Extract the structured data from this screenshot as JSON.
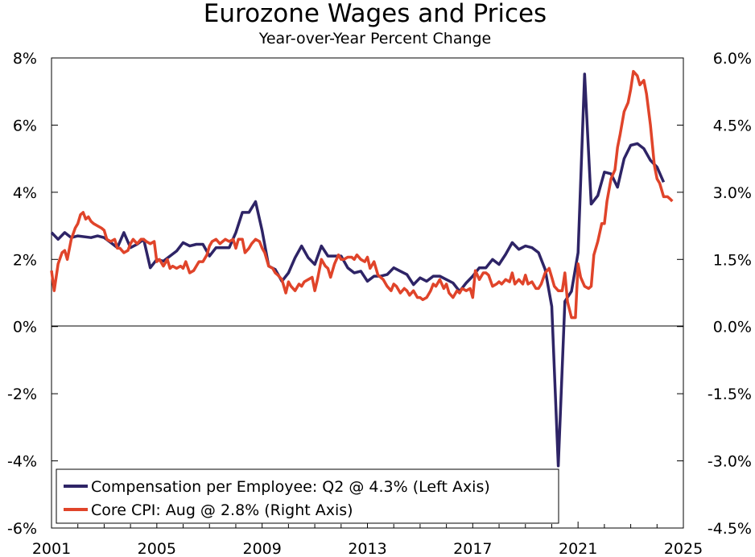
{
  "chart_data": {
    "type": "line",
    "title": "Eurozone Wages and Prices",
    "subtitle": "Year-over-Year Percent Change",
    "x_ticks": [
      "2001",
      "2005",
      "2009",
      "2013",
      "2017",
      "2021",
      "2025"
    ],
    "x_tick_values": [
      2001,
      2005,
      2009,
      2013,
      2017,
      2021,
      2025
    ],
    "xlim": [
      2001,
      2025
    ],
    "left_axis": {
      "ylim": [
        -6,
        8
      ],
      "ticks": [
        8,
        6,
        4,
        2,
        0,
        -2,
        -4,
        -6
      ],
      "tick_labels": [
        "8%",
        "6%",
        "4%",
        "2%",
        "0%",
        "-2%",
        "-4%",
        "-6%"
      ]
    },
    "right_axis": {
      "ylim": [
        -4.5,
        6.0
      ],
      "ticks": [
        6.0,
        4.5,
        3.0,
        1.5,
        0.0,
        -1.5,
        -3.0,
        -4.5
      ],
      "tick_labels": [
        "6.0%",
        "4.5%",
        "3.0%",
        "1.5%",
        "0.0%",
        "-1.5%",
        "-3.0%",
        "-4.5%"
      ]
    },
    "zero_line": true,
    "legend_position": "bottom-left",
    "series": [
      {
        "name": "Compensation per Employee: Q2 @ 4.3% (Left Axis)",
        "axis": "left",
        "color": "#2e2466",
        "points": [
          [
            2001.0,
            2.8
          ],
          [
            2001.25,
            2.6
          ],
          [
            2001.5,
            2.8
          ],
          [
            2001.75,
            2.65
          ],
          [
            2002.0,
            2.7
          ],
          [
            2002.5,
            2.65
          ],
          [
            2002.75,
            2.7
          ],
          [
            2003.0,
            2.65
          ],
          [
            2003.25,
            2.5
          ],
          [
            2003.5,
            2.35
          ],
          [
            2003.75,
            2.8
          ],
          [
            2004.0,
            2.35
          ],
          [
            2004.25,
            2.45
          ],
          [
            2004.5,
            2.6
          ],
          [
            2004.75,
            1.75
          ],
          [
            2005.0,
            2.0
          ],
          [
            2005.25,
            1.95
          ],
          [
            2005.5,
            2.1
          ],
          [
            2005.75,
            2.25
          ],
          [
            2006.0,
            2.5
          ],
          [
            2006.25,
            2.4
          ],
          [
            2006.5,
            2.45
          ],
          [
            2006.75,
            2.45
          ],
          [
            2007.0,
            2.1
          ],
          [
            2007.25,
            2.35
          ],
          [
            2007.5,
            2.35
          ],
          [
            2007.75,
            2.35
          ],
          [
            2008.0,
            2.8
          ],
          [
            2008.25,
            3.4
          ],
          [
            2008.5,
            3.4
          ],
          [
            2008.75,
            3.72
          ],
          [
            2009.0,
            2.85
          ],
          [
            2009.25,
            1.8
          ],
          [
            2009.5,
            1.7
          ],
          [
            2009.75,
            1.35
          ],
          [
            2010.0,
            1.6
          ],
          [
            2010.25,
            2.05
          ],
          [
            2010.5,
            2.4
          ],
          [
            2010.75,
            2.05
          ],
          [
            2011.0,
            1.85
          ],
          [
            2011.25,
            2.4
          ],
          [
            2011.5,
            2.1
          ],
          [
            2011.75,
            2.1
          ],
          [
            2012.0,
            2.1
          ],
          [
            2012.25,
            1.75
          ],
          [
            2012.5,
            1.6
          ],
          [
            2012.75,
            1.65
          ],
          [
            2013.0,
            1.35
          ],
          [
            2013.25,
            1.5
          ],
          [
            2013.5,
            1.5
          ],
          [
            2013.75,
            1.55
          ],
          [
            2014.0,
            1.75
          ],
          [
            2014.25,
            1.65
          ],
          [
            2014.5,
            1.55
          ],
          [
            2014.75,
            1.25
          ],
          [
            2015.0,
            1.45
          ],
          [
            2015.25,
            1.35
          ],
          [
            2015.5,
            1.5
          ],
          [
            2015.75,
            1.5
          ],
          [
            2016.0,
            1.4
          ],
          [
            2016.25,
            1.3
          ],
          [
            2016.5,
            1.05
          ],
          [
            2016.75,
            1.3
          ],
          [
            2017.0,
            1.5
          ],
          [
            2017.25,
            1.75
          ],
          [
            2017.5,
            1.75
          ],
          [
            2017.75,
            2.0
          ],
          [
            2018.0,
            1.85
          ],
          [
            2018.25,
            2.15
          ],
          [
            2018.5,
            2.5
          ],
          [
            2018.75,
            2.3
          ],
          [
            2019.0,
            2.4
          ],
          [
            2019.25,
            2.35
          ],
          [
            2019.5,
            2.2
          ],
          [
            2019.75,
            1.7
          ],
          [
            2020.0,
            0.6
          ],
          [
            2020.25,
            -4.15
          ],
          [
            2020.5,
            0.75
          ],
          [
            2020.75,
            1.05
          ],
          [
            2021.0,
            2.2
          ],
          [
            2021.25,
            7.52
          ],
          [
            2021.5,
            3.65
          ],
          [
            2021.75,
            3.9
          ],
          [
            2022.0,
            4.6
          ],
          [
            2022.25,
            4.55
          ],
          [
            2022.5,
            4.15
          ],
          [
            2022.75,
            5.0
          ],
          [
            2023.0,
            5.4
          ],
          [
            2023.25,
            5.45
          ],
          [
            2023.5,
            5.3
          ],
          [
            2023.75,
            4.95
          ],
          [
            2024.0,
            4.75
          ],
          [
            2024.25,
            4.3
          ]
        ]
      },
      {
        "name": "Core CPI: Aug @ 2.8% (Right Axis)",
        "axis": "right",
        "color": "#e0442a",
        "points": [
          [
            2001.0,
            1.25
          ],
          [
            2001.1,
            0.8
          ],
          [
            2001.25,
            1.4
          ],
          [
            2001.4,
            1.65
          ],
          [
            2001.5,
            1.7
          ],
          [
            2001.6,
            1.5
          ],
          [
            2001.75,
            1.95
          ],
          [
            2001.9,
            2.2
          ],
          [
            2002.0,
            2.3
          ],
          [
            2002.1,
            2.5
          ],
          [
            2002.2,
            2.55
          ],
          [
            2002.3,
            2.4
          ],
          [
            2002.4,
            2.45
          ],
          [
            2002.5,
            2.35
          ],
          [
            2002.6,
            2.3
          ],
          [
            2002.75,
            2.25
          ],
          [
            2002.9,
            2.2
          ],
          [
            2003.0,
            2.15
          ],
          [
            2003.1,
            1.95
          ],
          [
            2003.25,
            1.9
          ],
          [
            2003.4,
            1.95
          ],
          [
            2003.5,
            1.75
          ],
          [
            2003.6,
            1.75
          ],
          [
            2003.75,
            1.65
          ],
          [
            2003.9,
            1.7
          ],
          [
            2004.0,
            1.85
          ],
          [
            2004.1,
            1.95
          ],
          [
            2004.25,
            1.85
          ],
          [
            2004.4,
            1.95
          ],
          [
            2004.5,
            1.95
          ],
          [
            2004.6,
            1.9
          ],
          [
            2004.75,
            1.85
          ],
          [
            2004.9,
            1.9
          ],
          [
            2005.0,
            1.45
          ],
          [
            2005.1,
            1.5
          ],
          [
            2005.25,
            1.35
          ],
          [
            2005.4,
            1.5
          ],
          [
            2005.5,
            1.3
          ],
          [
            2005.6,
            1.35
          ],
          [
            2005.75,
            1.3
          ],
          [
            2005.9,
            1.35
          ],
          [
            2006.0,
            1.3
          ],
          [
            2006.1,
            1.45
          ],
          [
            2006.25,
            1.2
          ],
          [
            2006.4,
            1.25
          ],
          [
            2006.5,
            1.35
          ],
          [
            2006.6,
            1.45
          ],
          [
            2006.75,
            1.45
          ],
          [
            2006.9,
            1.6
          ],
          [
            2007.0,
            1.8
          ],
          [
            2007.1,
            1.9
          ],
          [
            2007.25,
            1.95
          ],
          [
            2007.4,
            1.85
          ],
          [
            2007.5,
            1.9
          ],
          [
            2007.6,
            1.95
          ],
          [
            2007.75,
            1.9
          ],
          [
            2007.9,
            1.95
          ],
          [
            2008.0,
            1.75
          ],
          [
            2008.1,
            1.95
          ],
          [
            2008.25,
            1.95
          ],
          [
            2008.35,
            1.65
          ],
          [
            2008.5,
            1.75
          ],
          [
            2008.6,
            1.85
          ],
          [
            2008.75,
            1.95
          ],
          [
            2008.9,
            1.9
          ],
          [
            2009.0,
            1.75
          ],
          [
            2009.1,
            1.65
          ],
          [
            2009.25,
            1.35
          ],
          [
            2009.4,
            1.3
          ],
          [
            2009.5,
            1.2
          ],
          [
            2009.6,
            1.15
          ],
          [
            2009.75,
            1.05
          ],
          [
            2009.9,
            0.75
          ],
          [
            2010.0,
            1.0
          ],
          [
            2010.1,
            0.9
          ],
          [
            2010.25,
            0.8
          ],
          [
            2010.4,
            0.95
          ],
          [
            2010.5,
            0.9
          ],
          [
            2010.6,
            1.0
          ],
          [
            2010.75,
            1.05
          ],
          [
            2010.9,
            1.1
          ],
          [
            2011.0,
            0.8
          ],
          [
            2011.1,
            1.05
          ],
          [
            2011.25,
            1.5
          ],
          [
            2011.4,
            1.35
          ],
          [
            2011.5,
            1.3
          ],
          [
            2011.6,
            1.1
          ],
          [
            2011.75,
            1.4
          ],
          [
            2011.9,
            1.6
          ],
          [
            2012.0,
            1.5
          ],
          [
            2012.1,
            1.5
          ],
          [
            2012.25,
            1.55
          ],
          [
            2012.4,
            1.55
          ],
          [
            2012.5,
            1.5
          ],
          [
            2012.6,
            1.6
          ],
          [
            2012.75,
            1.5
          ],
          [
            2012.9,
            1.45
          ],
          [
            2013.0,
            1.55
          ],
          [
            2013.1,
            1.3
          ],
          [
            2013.25,
            1.45
          ],
          [
            2013.4,
            1.15
          ],
          [
            2013.5,
            1.1
          ],
          [
            2013.6,
            1.05
          ],
          [
            2013.75,
            0.9
          ],
          [
            2013.9,
            0.8
          ],
          [
            2014.0,
            0.95
          ],
          [
            2014.1,
            0.9
          ],
          [
            2014.25,
            0.75
          ],
          [
            2014.4,
            0.85
          ],
          [
            2014.5,
            0.8
          ],
          [
            2014.6,
            0.7
          ],
          [
            2014.75,
            0.8
          ],
          [
            2014.9,
            0.65
          ],
          [
            2015.0,
            0.65
          ],
          [
            2015.1,
            0.6
          ],
          [
            2015.25,
            0.65
          ],
          [
            2015.4,
            0.8
          ],
          [
            2015.5,
            0.95
          ],
          [
            2015.6,
            0.9
          ],
          [
            2015.75,
            1.05
          ],
          [
            2015.9,
            0.85
          ],
          [
            2016.0,
            0.95
          ],
          [
            2016.1,
            0.75
          ],
          [
            2016.25,
            0.65
          ],
          [
            2016.4,
            0.8
          ],
          [
            2016.5,
            0.75
          ],
          [
            2016.6,
            0.85
          ],
          [
            2016.75,
            0.8
          ],
          [
            2016.9,
            0.85
          ],
          [
            2017.0,
            0.65
          ],
          [
            2017.1,
            1.25
          ],
          [
            2017.25,
            1.05
          ],
          [
            2017.4,
            1.2
          ],
          [
            2017.5,
            1.2
          ],
          [
            2017.6,
            1.15
          ],
          [
            2017.75,
            0.9
          ],
          [
            2017.9,
            0.95
          ],
          [
            2018.0,
            1.0
          ],
          [
            2018.1,
            0.95
          ],
          [
            2018.25,
            1.05
          ],
          [
            2018.4,
            1.0
          ],
          [
            2018.5,
            1.2
          ],
          [
            2018.6,
            0.95
          ],
          [
            2018.75,
            1.05
          ],
          [
            2018.9,
            0.95
          ],
          [
            2019.0,
            1.15
          ],
          [
            2019.1,
            0.95
          ],
          [
            2019.25,
            1.0
          ],
          [
            2019.4,
            0.85
          ],
          [
            2019.5,
            0.85
          ],
          [
            2019.6,
            0.95
          ],
          [
            2019.75,
            1.2
          ],
          [
            2019.9,
            1.3
          ],
          [
            2020.0,
            1.1
          ],
          [
            2020.1,
            0.9
          ],
          [
            2020.25,
            0.8
          ],
          [
            2020.4,
            0.8
          ],
          [
            2020.5,
            1.2
          ],
          [
            2020.6,
            0.55
          ],
          [
            2020.75,
            0.2
          ],
          [
            2020.9,
            0.2
          ],
          [
            2021.0,
            1.4
          ],
          [
            2021.1,
            1.1
          ],
          [
            2021.25,
            0.9
          ],
          [
            2021.4,
            0.85
          ],
          [
            2021.5,
            0.9
          ],
          [
            2021.6,
            1.6
          ],
          [
            2021.75,
            1.9
          ],
          [
            2021.9,
            2.3
          ],
          [
            2022.0,
            2.3
          ],
          [
            2022.1,
            2.8
          ],
          [
            2022.25,
            3.3
          ],
          [
            2022.4,
            3.5
          ],
          [
            2022.5,
            4.0
          ],
          [
            2022.6,
            4.3
          ],
          [
            2022.75,
            4.8
          ],
          [
            2022.9,
            5.0
          ],
          [
            2023.0,
            5.3
          ],
          [
            2023.1,
            5.7
          ],
          [
            2023.25,
            5.6
          ],
          [
            2023.35,
            5.4
          ],
          [
            2023.5,
            5.5
          ],
          [
            2023.6,
            5.2
          ],
          [
            2023.75,
            4.5
          ],
          [
            2023.9,
            3.6
          ],
          [
            2024.0,
            3.3
          ],
          [
            2024.1,
            3.2
          ],
          [
            2024.25,
            2.9
          ],
          [
            2024.4,
            2.9
          ],
          [
            2024.5,
            2.85
          ],
          [
            2024.58,
            2.8
          ]
        ]
      }
    ]
  }
}
